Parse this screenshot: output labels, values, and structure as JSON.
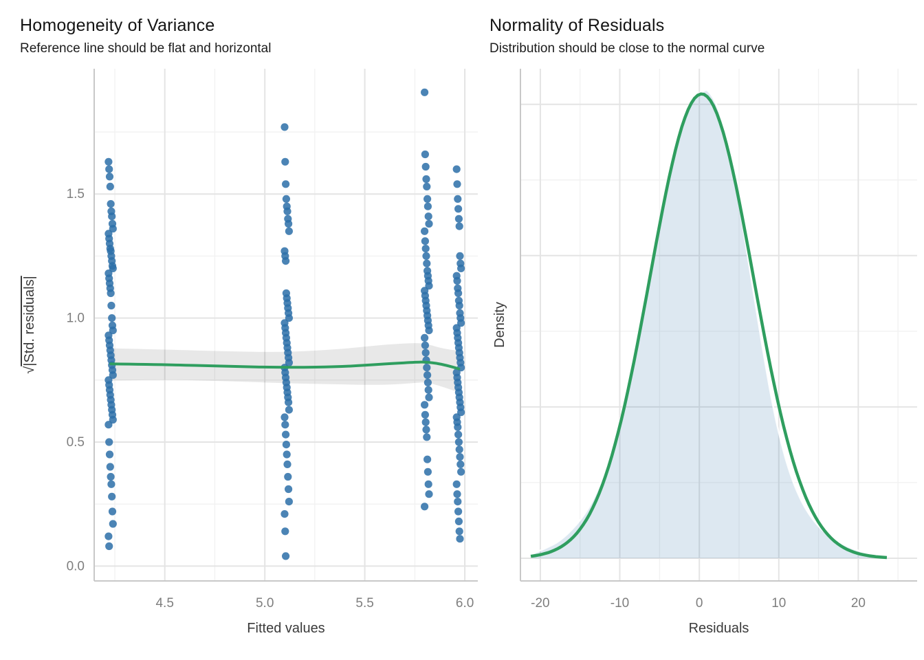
{
  "figure": {
    "background": "#ffffff"
  },
  "colors": {
    "point_blue": "#2c6ea8",
    "reference_green": "#2f9e5f",
    "ribbon_gray": "#000000",
    "density_fill_blue": "#2c6ea8",
    "density_edge_white": "#ffffff",
    "grid_major": "#e4e4e4",
    "grid_minor": "#f1f1f1",
    "axis_line": "#c8c8c8",
    "tick_label": "#7e7e7e",
    "axis_title": "#3a3a3a",
    "title": "#141414"
  },
  "chart_data": [
    {
      "type": "scatter",
      "panel": "left",
      "title": "Homogeneity of Variance",
      "subtitle": "Reference line should be flat and horizontal",
      "xlabel": "Fitted values",
      "ylabel": "√|Std. residuals|",
      "ylabel_sqrt": "√",
      "ylabel_overline": "|Std. residuals|",
      "xlim": [
        4.147,
        6.065
      ],
      "ylim": [
        -0.06,
        2.005
      ],
      "xticks": {
        "values": [
          4.5,
          5.0,
          5.5,
          6.0
        ],
        "labels": [
          "4.5",
          "5.0",
          "5.5",
          "6.0"
        ]
      },
      "xminor": [
        4.25,
        4.75,
        5.25,
        5.75
      ],
      "yticks": {
        "values": [
          0.0,
          0.5,
          1.0,
          1.5
        ],
        "labels": [
          "0.0",
          "0.5",
          "1.0",
          "1.5"
        ]
      },
      "yminor": [
        0.25,
        0.75,
        1.25,
        1.75
      ],
      "grid": true,
      "legend": "none",
      "series": [
        {
          "name": "fitted-4.23",
          "fitted": 4.23,
          "values": [
            1.63,
            1.6,
            1.57,
            1.53,
            1.46,
            1.43,
            1.41,
            1.38,
            1.36,
            1.34,
            1.32,
            1.3,
            1.28,
            1.27,
            1.25,
            1.23,
            1.21,
            1.2,
            1.18,
            1.16,
            1.14,
            1.12,
            1.1,
            1.05,
            1.0,
            0.97,
            0.95,
            0.93,
            0.91,
            0.89,
            0.87,
            0.85,
            0.83,
            0.81,
            0.79,
            0.77,
            0.75,
            0.73,
            0.71,
            0.69,
            0.67,
            0.65,
            0.63,
            0.61,
            0.59,
            0.57,
            0.5,
            0.45,
            0.4,
            0.36,
            0.33,
            0.28,
            0.22,
            0.17,
            0.12,
            0.08
          ]
        },
        {
          "name": "fitted-5.11",
          "fitted": 5.11,
          "values": [
            1.77,
            1.63,
            1.54,
            1.48,
            1.45,
            1.43,
            1.4,
            1.38,
            1.35,
            1.27,
            1.25,
            1.23,
            1.1,
            1.08,
            1.06,
            1.04,
            1.02,
            1.0,
            0.98,
            0.96,
            0.94,
            0.92,
            0.9,
            0.88,
            0.86,
            0.84,
            0.82,
            0.8,
            0.78,
            0.76,
            0.74,
            0.72,
            0.7,
            0.68,
            0.66,
            0.63,
            0.6,
            0.57,
            0.53,
            0.49,
            0.45,
            0.41,
            0.36,
            0.31,
            0.26,
            0.21,
            0.14,
            0.04
          ]
        },
        {
          "name": "fitted-5.81",
          "fitted": 5.81,
          "values": [
            1.91,
            1.66,
            1.61,
            1.56,
            1.53,
            1.48,
            1.45,
            1.41,
            1.38,
            1.35,
            1.31,
            1.28,
            1.25,
            1.22,
            1.19,
            1.17,
            1.15,
            1.13,
            1.11,
            1.09,
            1.07,
            1.05,
            1.03,
            1.01,
            0.99,
            0.97,
            0.95,
            0.92,
            0.89,
            0.86,
            0.83,
            0.8,
            0.77,
            0.74,
            0.71,
            0.68,
            0.65,
            0.61,
            0.58,
            0.55,
            0.52,
            0.43,
            0.38,
            0.33,
            0.29,
            0.24
          ]
        },
        {
          "name": "fitted-5.97",
          "fitted": 5.97,
          "values": [
            1.6,
            1.54,
            1.48,
            1.44,
            1.4,
            1.37,
            1.25,
            1.22,
            1.2,
            1.17,
            1.15,
            1.12,
            1.1,
            1.07,
            1.05,
            1.02,
            1.0,
            0.98,
            0.96,
            0.94,
            0.92,
            0.9,
            0.88,
            0.86,
            0.84,
            0.82,
            0.8,
            0.78,
            0.76,
            0.74,
            0.72,
            0.7,
            0.68,
            0.66,
            0.64,
            0.62,
            0.6,
            0.58,
            0.56,
            0.53,
            0.5,
            0.47,
            0.44,
            0.41,
            0.38,
            0.33,
            0.29,
            0.26,
            0.22,
            0.18,
            0.14,
            0.11
          ]
        }
      ],
      "smooth_line": {
        "x": [
          4.23,
          4.5,
          4.8,
          5.11,
          5.4,
          5.6,
          5.75,
          5.81,
          5.9,
          5.97
        ],
        "y": [
          0.815,
          0.812,
          0.806,
          0.8,
          0.804,
          0.815,
          0.822,
          0.823,
          0.812,
          0.795
        ]
      },
      "confidence_band": {
        "x": [
          4.23,
          4.5,
          4.8,
          5.11,
          5.4,
          5.6,
          5.75,
          5.81,
          5.9,
          5.97
        ],
        "upper": [
          0.878,
          0.873,
          0.866,
          0.862,
          0.876,
          0.893,
          0.9,
          0.896,
          0.874,
          0.868
        ],
        "lower": [
          0.748,
          0.752,
          0.746,
          0.737,
          0.732,
          0.73,
          0.738,
          0.742,
          0.72,
          0.7
        ]
      }
    },
    {
      "type": "area",
      "panel": "right",
      "title": "Normality of Residuals",
      "subtitle": "Distribution should be close to the normal curve",
      "xlabel": "Residuals",
      "ylabel": "Density",
      "xlim": [
        -22.5,
        27.4
      ],
      "ylim": [
        -0.003,
        0.0647
      ],
      "xticks": {
        "values": [
          -20,
          -10,
          0,
          10,
          20
        ],
        "labels": [
          "-20",
          "-10",
          "0",
          "10",
          "20"
        ]
      },
      "xminor": [
        -15,
        -5,
        5,
        15,
        25
      ],
      "yticks": {
        "values": [
          0,
          0.02,
          0.04,
          0.06
        ],
        "labels": []
      },
      "yminor": [
        0.01,
        0.03,
        0.05
      ],
      "grid": true,
      "legend": "none",
      "density_curve": {
        "x": [
          -21,
          -20,
          -19,
          -18,
          -17,
          -16,
          -15,
          -14,
          -13,
          -12,
          -11,
          -10,
          -9,
          -8,
          -7,
          -6,
          -5,
          -4,
          -3,
          -2,
          -1,
          0,
          0.5,
          1,
          2,
          3,
          4,
          5,
          6,
          7,
          8,
          9,
          10,
          11,
          12,
          13,
          14,
          15,
          16,
          17,
          18,
          19,
          20,
          21,
          22,
          23,
          23.6
        ],
        "y": [
          0.0006,
          0.001,
          0.0015,
          0.002,
          0.0028,
          0.0038,
          0.005,
          0.0065,
          0.0085,
          0.011,
          0.0145,
          0.018,
          0.0225,
          0.0275,
          0.033,
          0.0385,
          0.0445,
          0.05,
          0.0545,
          0.058,
          0.0605,
          0.0615,
          0.0617,
          0.062,
          0.0605,
          0.0575,
          0.0525,
          0.047,
          0.0405,
          0.034,
          0.0275,
          0.0215,
          0.0165,
          0.0125,
          0.0095,
          0.0072,
          0.0055,
          0.0042,
          0.0032,
          0.0025,
          0.0019,
          0.0014,
          0.001,
          0.0007,
          0.0005,
          0.0004,
          0.0003
        ]
      },
      "normal_curve": {
        "mean": 0.3,
        "sd": 6.5,
        "x_from": -21,
        "x_to": 23.6
      }
    }
  ]
}
